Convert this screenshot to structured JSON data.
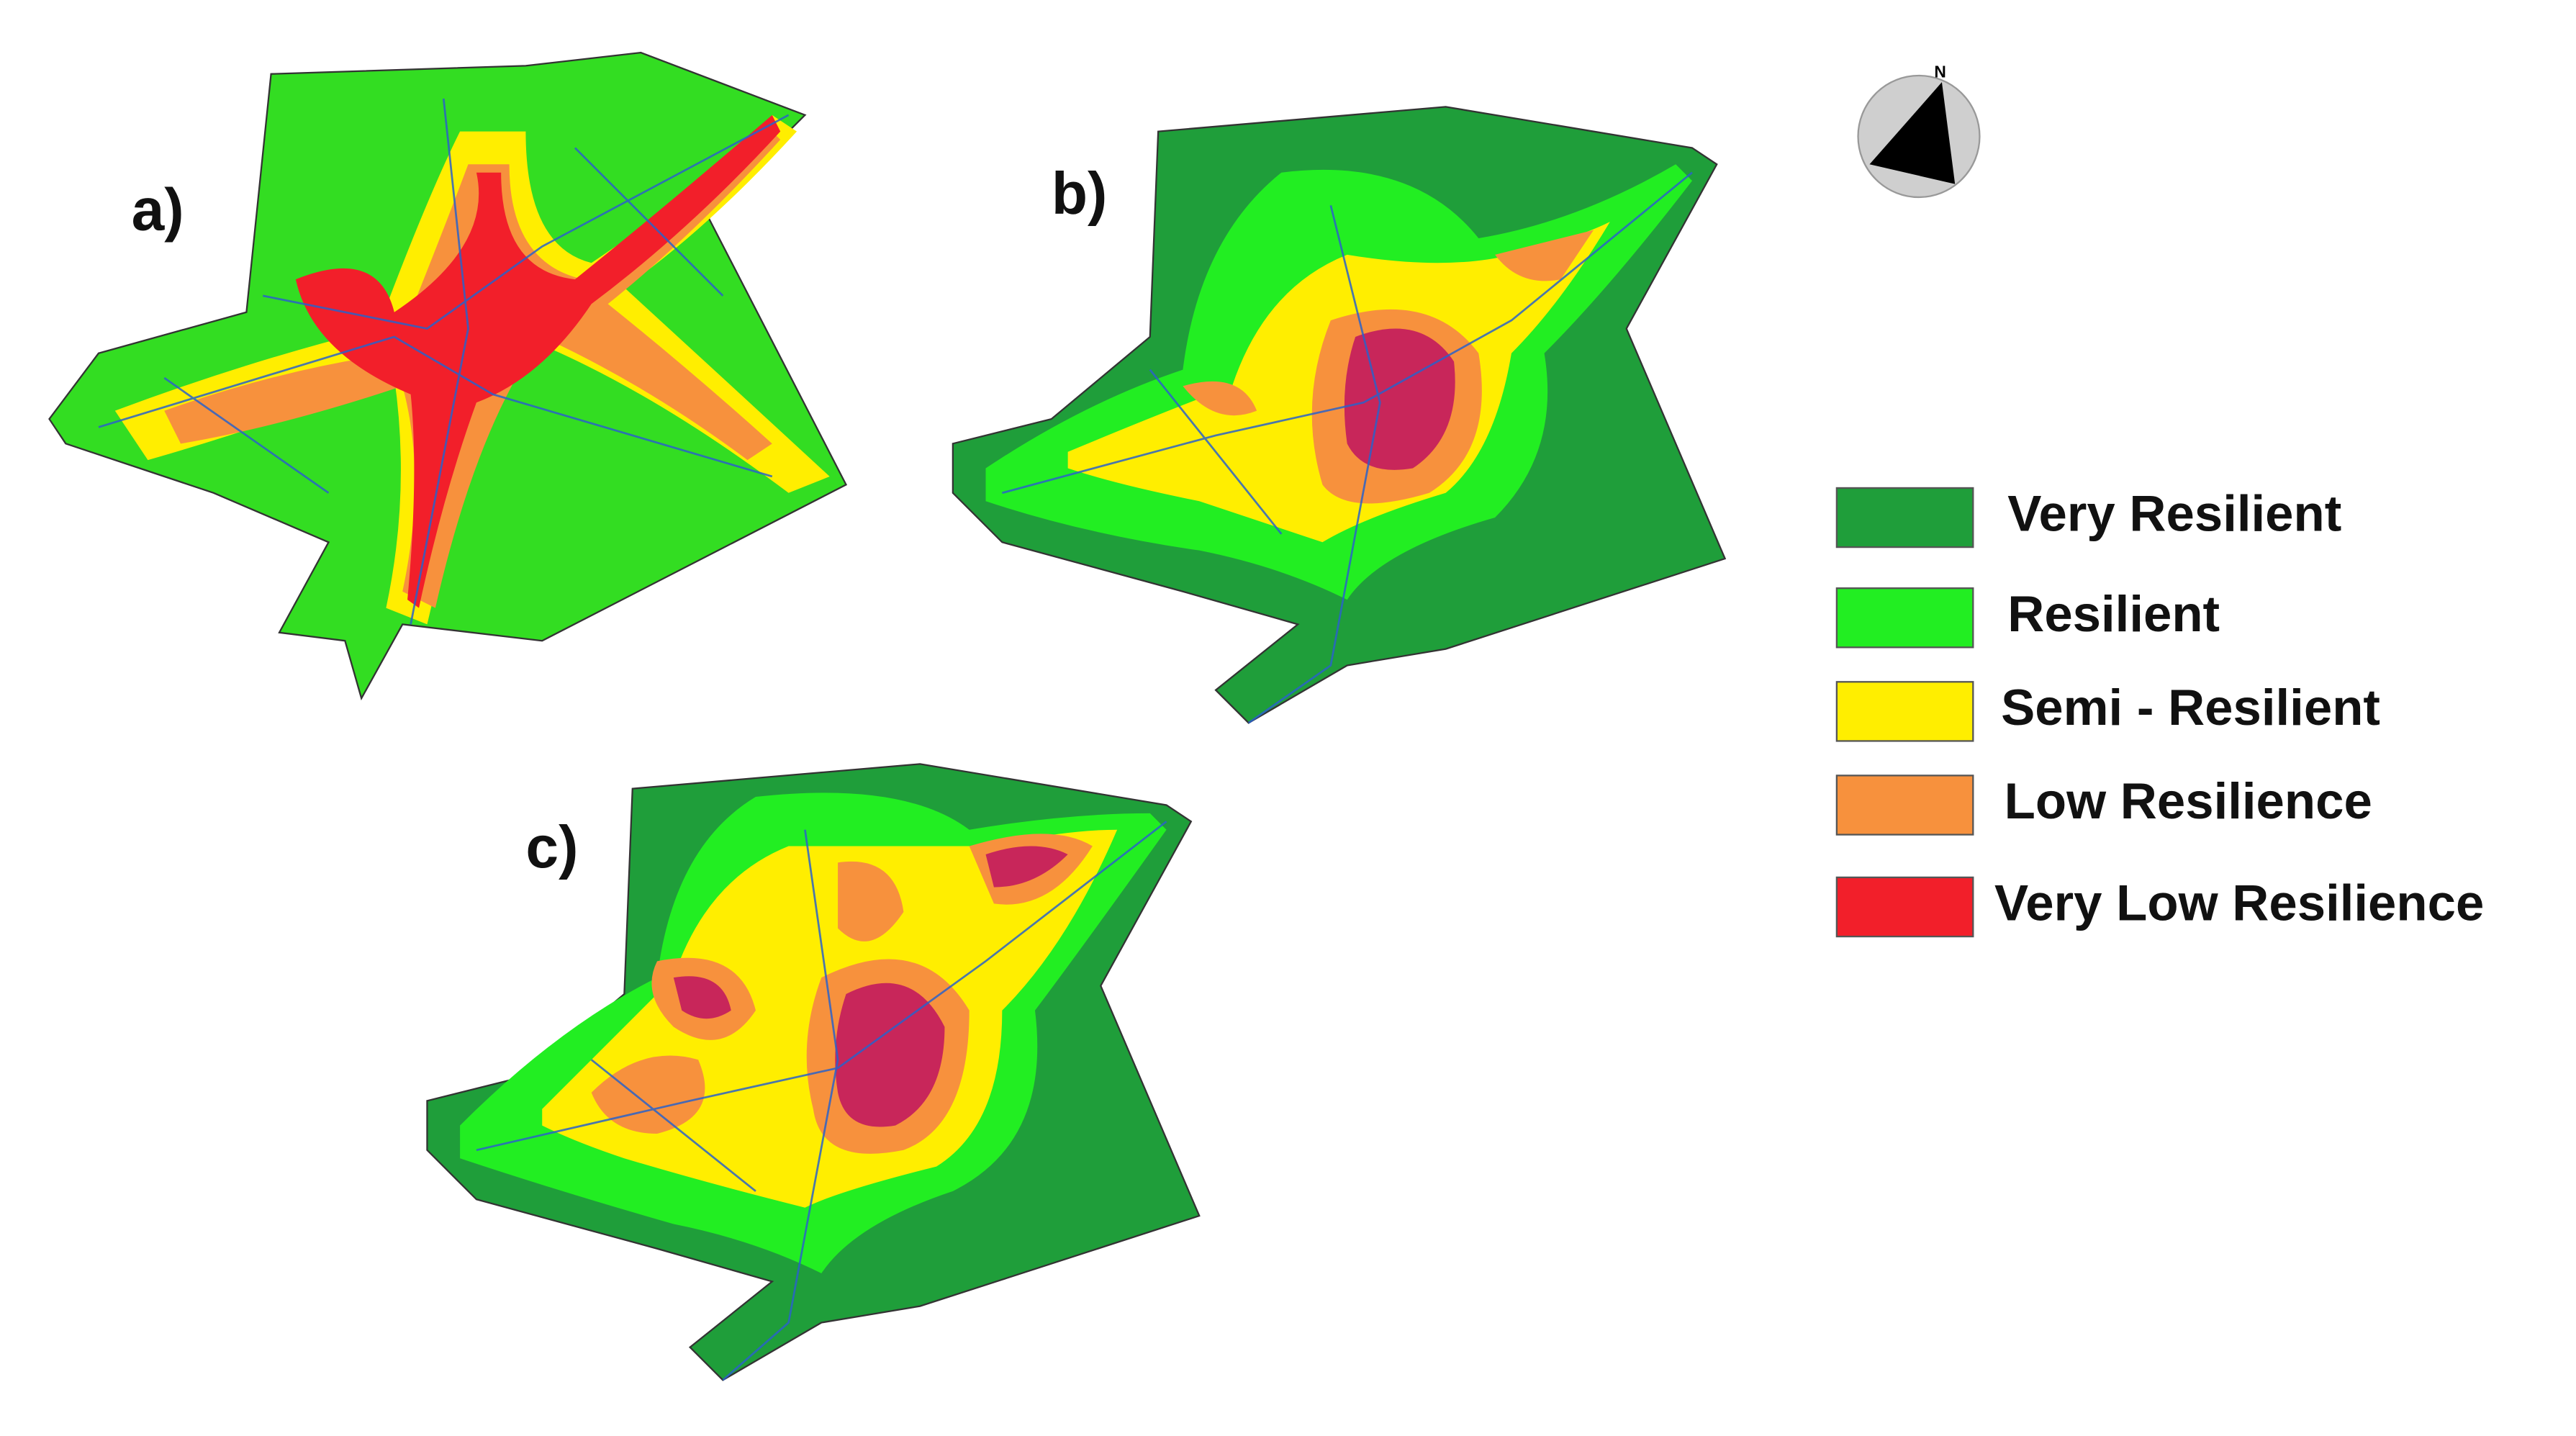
{
  "panels": [
    {
      "label": "a)"
    },
    {
      "label": "b)"
    },
    {
      "label": "c)"
    }
  ],
  "compass": {
    "label": "N"
  },
  "legend": {
    "items": [
      {
        "label": "Very Resilient",
        "color": "#1f9e3a"
      },
      {
        "label": "Resilient",
        "color": "#22ee22"
      },
      {
        "label": "Semi - Resilient",
        "color": "#ffee00"
      },
      {
        "label": "Low Resilience",
        "color": "#f7913d"
      },
      {
        "label": "Very Low Resilience",
        "color": "#f21f2a"
      }
    ]
  }
}
